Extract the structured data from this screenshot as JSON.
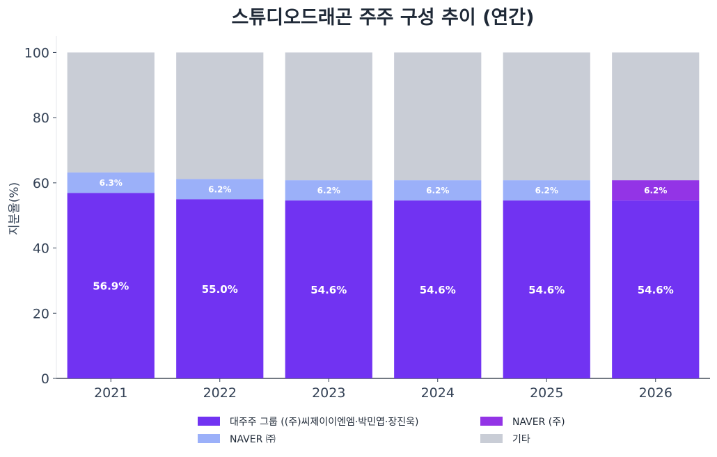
{
  "chart_data": {
    "type": "bar",
    "stacked": true,
    "title": "스튜디오드래곤 주주 구성 추이 (연간)",
    "xlabel": "",
    "ylabel": "지분율(%)",
    "ylim": [
      0,
      105
    ],
    "yticks": [
      0,
      20,
      40,
      60,
      80,
      100
    ],
    "grid": false,
    "legend_position": "bottom",
    "categories": [
      "2021",
      "2022",
      "2023",
      "2024",
      "2025",
      "2026"
    ],
    "series": [
      {
        "name": "대주주 그룹 ((주)씨제이이엔엠·박민엽·장진욱)",
        "color": "#7133f2",
        "values": [
          56.9,
          55.0,
          54.6,
          54.6,
          54.6,
          54.6
        ],
        "labels": [
          "56.9%",
          "55.0%",
          "54.6%",
          "54.6%",
          "54.6%",
          "54.6%"
        ]
      },
      {
        "name": "NAVER ㈜",
        "color": "#9bb0f9",
        "values": [
          6.3,
          6.2,
          6.2,
          6.2,
          6.2,
          null
        ],
        "labels": [
          "6.3%",
          "6.2%",
          "6.2%",
          "6.2%",
          "6.2%",
          ""
        ]
      },
      {
        "name": "NAVER (주)",
        "color": "#9334e6",
        "values": [
          null,
          null,
          null,
          null,
          null,
          6.2
        ],
        "labels": [
          "",
          "",
          "",
          "",
          "",
          "6.2%"
        ]
      },
      {
        "name": "기타",
        "color": "#c9cdd6",
        "values": [
          36.8,
          38.8,
          39.2,
          39.2,
          39.2,
          39.2
        ],
        "labels": [
          "",
          "",
          "",
          "",
          "",
          ""
        ]
      }
    ],
    "legend_order": [
      0,
      2,
      1,
      3
    ]
  }
}
